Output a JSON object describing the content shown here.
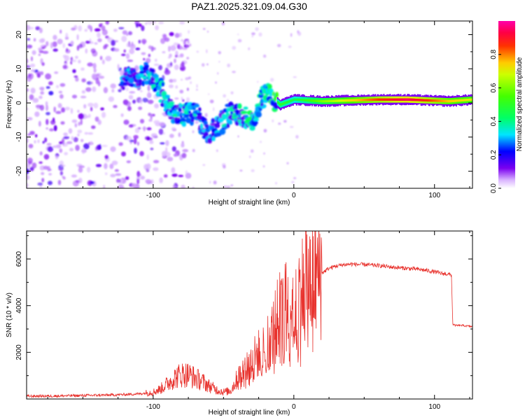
{
  "title": "PAZ1.2025.321.09.04.G30",
  "colors": {
    "snr_line": "#e8332e",
    "freq_track_low": "#6a00e8",
    "freq_track_high": "#e8102a",
    "noise": "#9b59ff"
  },
  "colorbar": {
    "label": "Normalized spectral amplitude",
    "ticks": [
      "0.0",
      "0.2",
      "0.4",
      "0.6",
      "0.8"
    ],
    "colormap": "gist_ncar_r-like (magenta→red→yellow→green→cyan→blue→purple→white)"
  },
  "chart_data": [
    {
      "type": "heatmap",
      "name": "spectrogram",
      "xlabel": "Height of straight line (km)",
      "ylabel": "Frequency (Hz)",
      "xlim": [
        -190,
        127
      ],
      "ylim": [
        -25,
        24
      ],
      "xticks": [
        -100,
        0,
        100
      ],
      "yticks": [
        -20,
        -10,
        0,
        10,
        20
      ],
      "xtick_labels": [
        "-100",
        "0",
        "100"
      ],
      "ytick_labels": [
        "-20",
        "-10",
        "0",
        "10",
        "20"
      ],
      "clim": [
        0.0,
        1.0
      ],
      "description_track": [
        {
          "x": -120,
          "f": 7,
          "amp": 0.25
        },
        {
          "x": -105,
          "f": 9,
          "amp": 0.3
        },
        {
          "x": -95,
          "f": 4,
          "amp": 0.3
        },
        {
          "x": -85,
          "f": -4,
          "amp": 0.3
        },
        {
          "x": -70,
          "f": -3,
          "amp": 0.3
        },
        {
          "x": -60,
          "f": -9,
          "amp": 0.25
        },
        {
          "x": -45,
          "f": -3,
          "amp": 0.3
        },
        {
          "x": -30,
          "f": -5,
          "amp": 0.35
        },
        {
          "x": -20,
          "f": 3,
          "amp": 0.35
        },
        {
          "x": -10,
          "f": -0.5,
          "amp": 0.5
        },
        {
          "x": 0,
          "f": 1,
          "amp": 0.45
        },
        {
          "x": 20,
          "f": 0.5,
          "amp": 0.6
        },
        {
          "x": 60,
          "f": 1,
          "amp": 0.85
        },
        {
          "x": 80,
          "f": 1,
          "amp": 0.95
        },
        {
          "x": 110,
          "f": 0.5,
          "amp": 0.75
        },
        {
          "x": 127,
          "f": 1,
          "amp": 0.7
        }
      ]
    },
    {
      "type": "line",
      "name": "snr",
      "xlabel": "Height of straight line (km)",
      "ylabel": "SNR (10 * v/v)",
      "xlim": [
        -190,
        127
      ],
      "ylim": [
        0,
        7200
      ],
      "xticks": [
        -100,
        0,
        100
      ],
      "yticks": [
        2000,
        4000,
        6000
      ],
      "xtick_labels": [
        "-100",
        "0",
        "100"
      ],
      "ytick_labels": [
        "2000",
        "4000",
        "6000"
      ],
      "series": [
        {
          "name": "SNR",
          "x": [
            -190,
            -170,
            -150,
            -130,
            -110,
            -100,
            -95,
            -90,
            -85,
            -80,
            -75,
            -70,
            -65,
            -60,
            -55,
            -50,
            -45,
            -40,
            -35,
            -30,
            -25,
            -20,
            -15,
            -10,
            -5,
            0,
            5,
            10,
            15,
            20,
            25,
            30,
            35,
            40,
            50,
            60,
            70,
            80,
            90,
            100,
            105,
            110,
            112,
            113,
            115,
            120,
            127
          ],
          "values": [
            120,
            130,
            150,
            170,
            220,
            300,
            420,
            650,
            900,
            1050,
            1050,
            900,
            750,
            550,
            400,
            300,
            350,
            900,
            1300,
            1650,
            1950,
            2300,
            2800,
            3600,
            4000,
            4200,
            4600,
            5000,
            5200,
            5400,
            5600,
            5700,
            5750,
            5780,
            5760,
            5720,
            5650,
            5600,
            5550,
            5450,
            5380,
            5350,
            5300,
            3200,
            3150,
            3150,
            3100
          ]
        }
      ]
    }
  ]
}
